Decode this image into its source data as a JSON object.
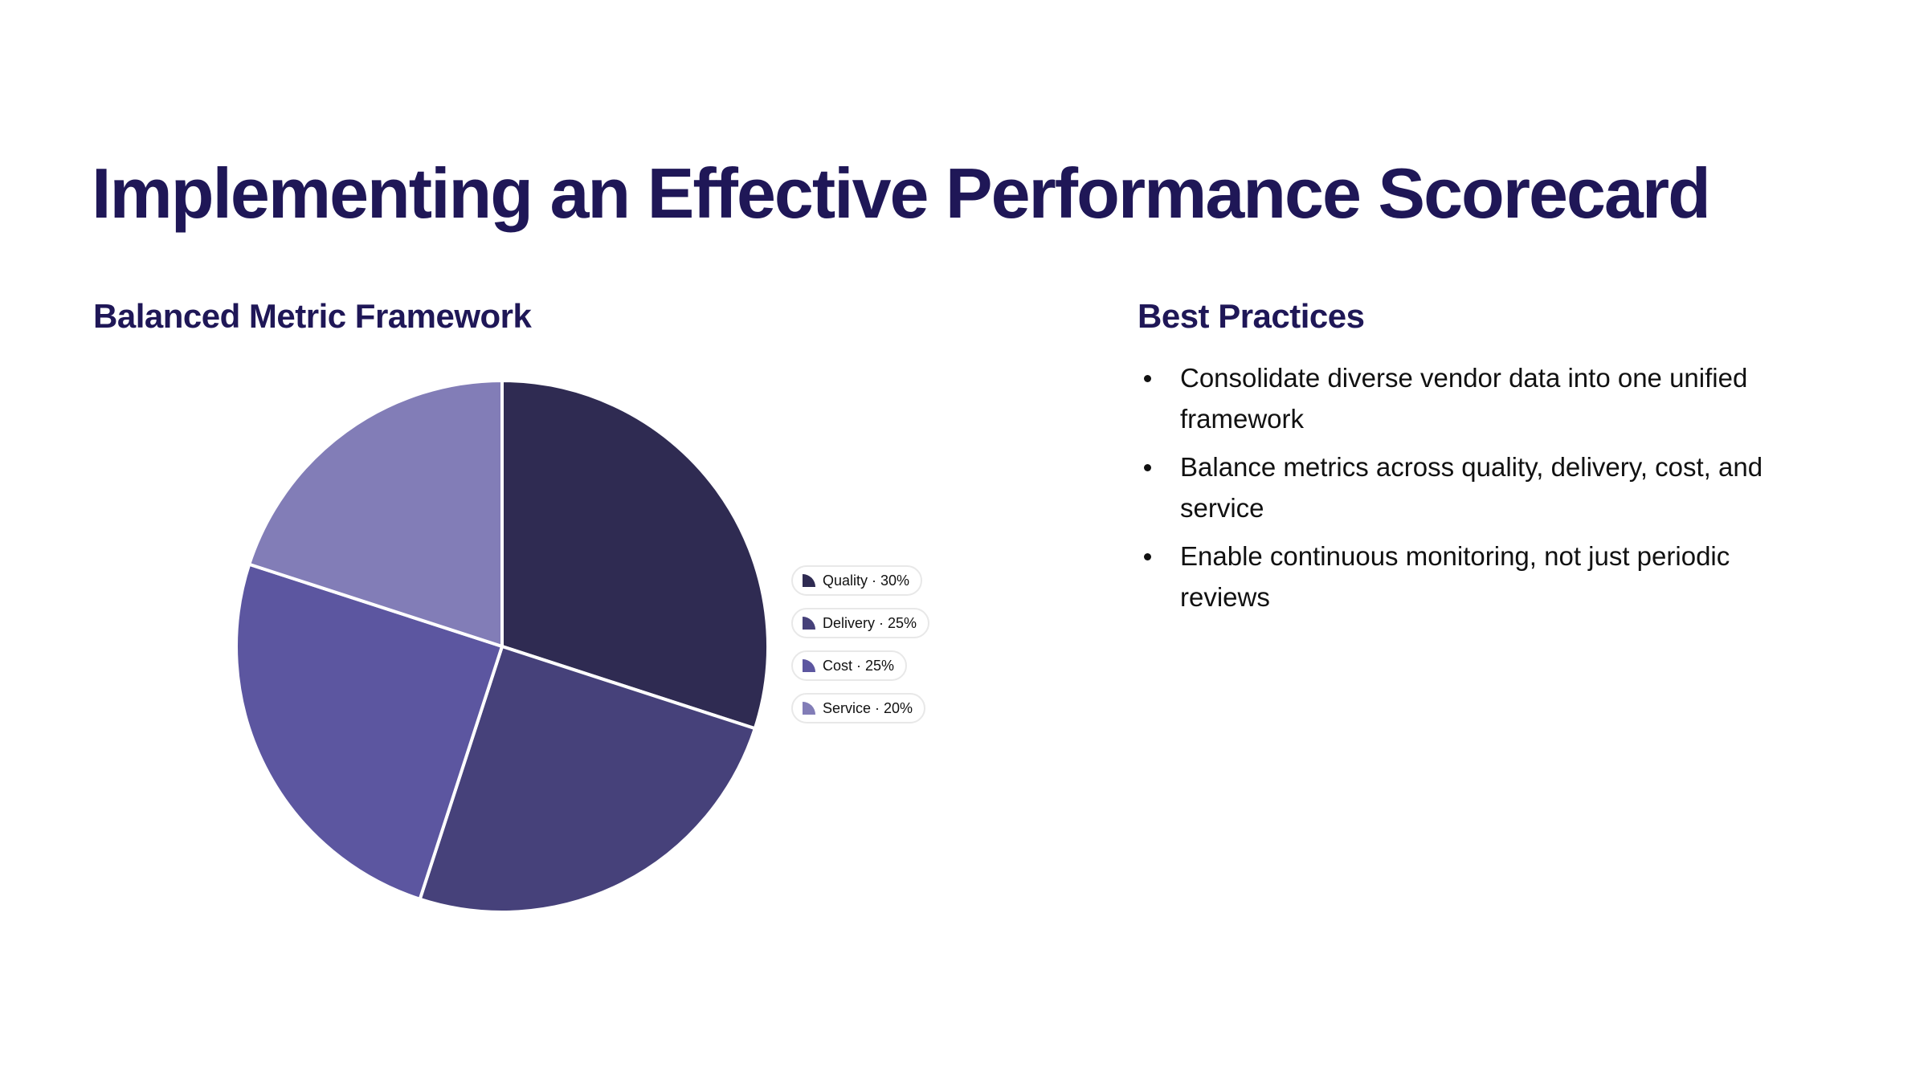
{
  "title": "Implementing an Effective Performance Scorecard",
  "left": {
    "heading": "Balanced Metric Framework"
  },
  "right": {
    "heading": "Best Practices",
    "bullets": [
      "Consolidate diverse vendor data into one unified framework",
      "Balance metrics across quality, delivery, cost, and service",
      "Enable continuous monitoring, not just periodic reviews"
    ]
  },
  "chart_data": {
    "type": "pie",
    "categories": [
      "Quality",
      "Delivery",
      "Cost",
      "Service"
    ],
    "values": [
      30,
      25,
      25,
      20
    ],
    "colors": [
      "#2f2b52",
      "#46417a",
      "#5c56a0",
      "#827db7"
    ],
    "legend_labels": [
      "Quality · 30%",
      "Delivery · 25%",
      "Cost · 25%",
      "Service · 20%"
    ],
    "legend": "right"
  }
}
